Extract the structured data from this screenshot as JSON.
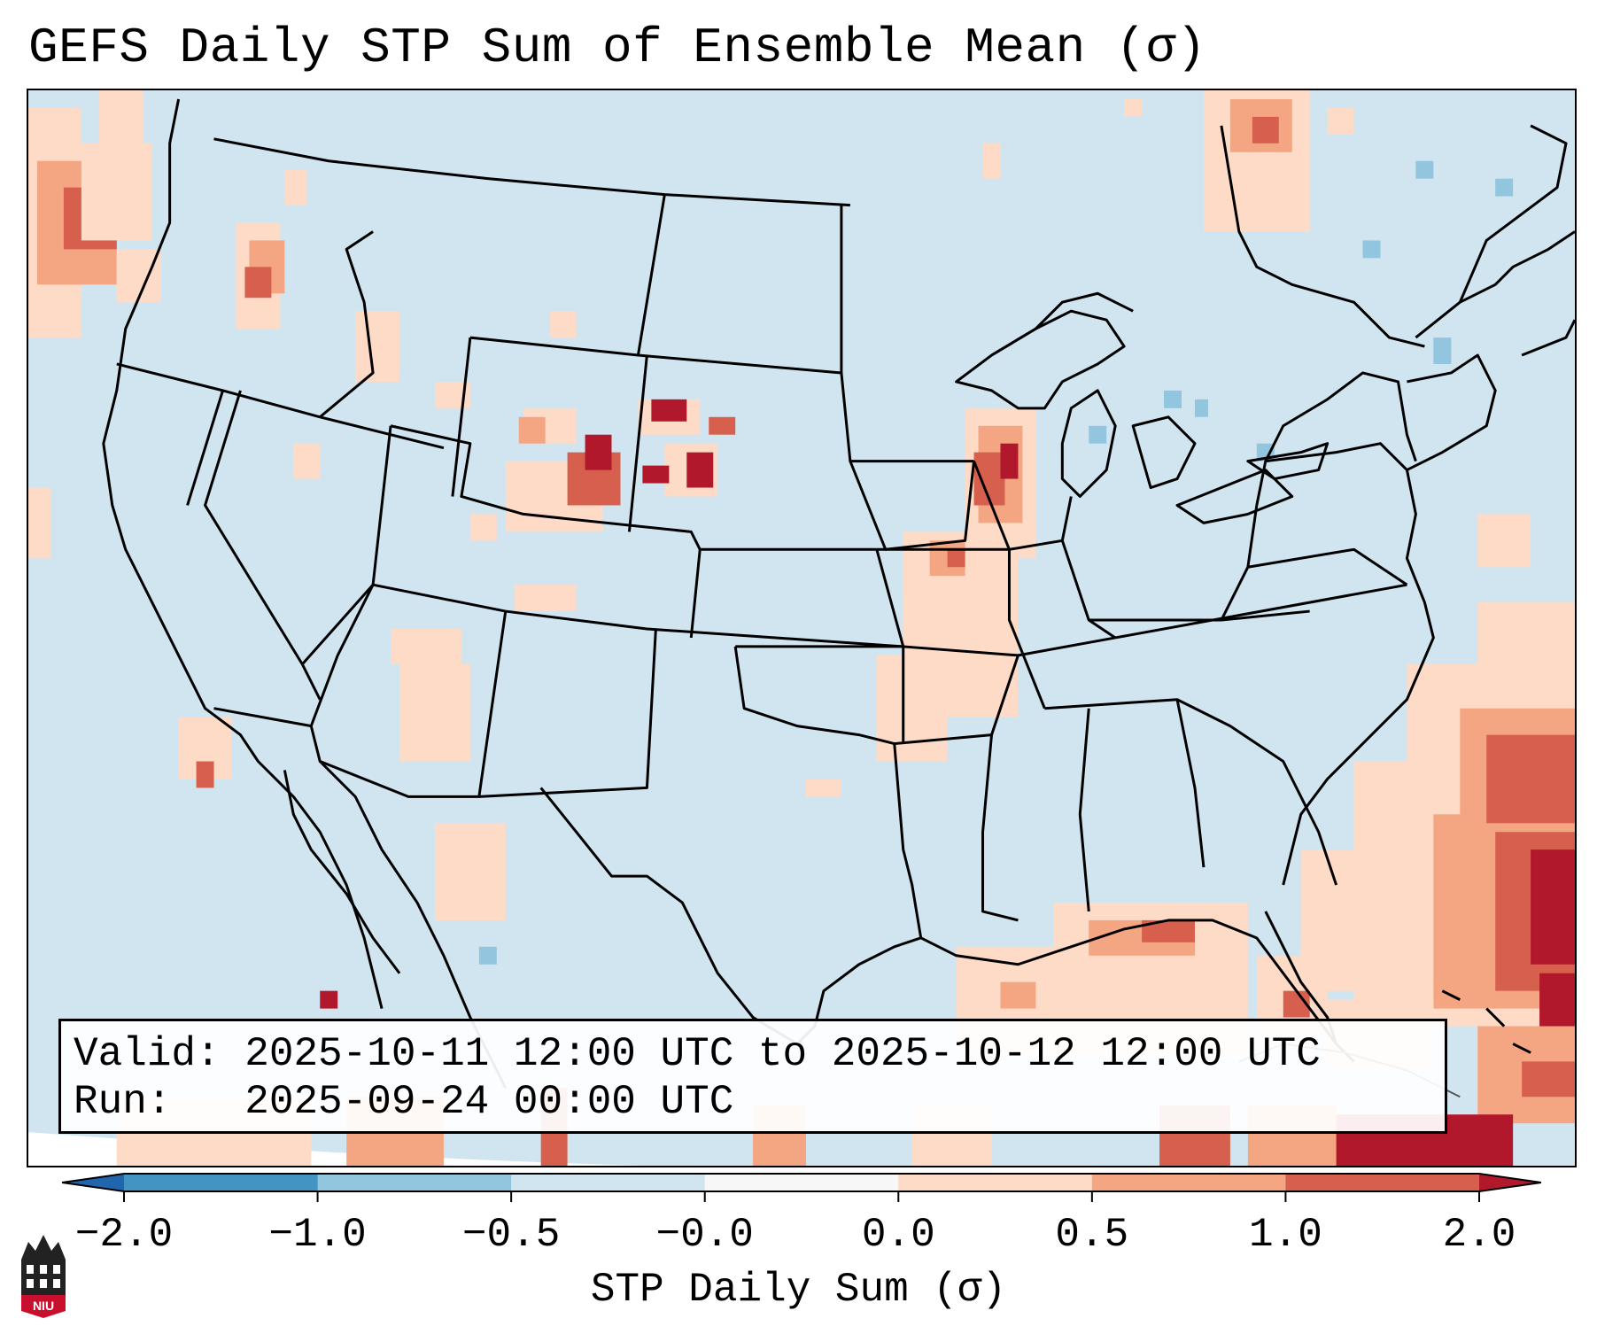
{
  "title": "GEFS Daily STP Sum of Ensemble Mean (σ)",
  "info_box": {
    "valid_line": "Valid: 2025-10-11 12:00 UTC to 2025-10-12 12:00 UTC",
    "run_line": "Run:   2025-09-24 00:00 UTC"
  },
  "colorbar": {
    "label": "STP Daily Sum (σ)",
    "ticks": [
      "−2.0",
      "−1.0",
      "−0.5",
      "−0.0",
      "0.0",
      "0.5",
      "1.0",
      "2.0"
    ],
    "colors": [
      "#4393c3",
      "#92c5de",
      "#d1e5f0",
      "#f7f7f7",
      "#fddbc7",
      "#f4a582",
      "#d6604d"
    ],
    "under_color": "#2166ac",
    "over_color": "#b2182b"
  },
  "logo": {
    "text": "NIU",
    "icon": "niu-logo-icon"
  }
}
